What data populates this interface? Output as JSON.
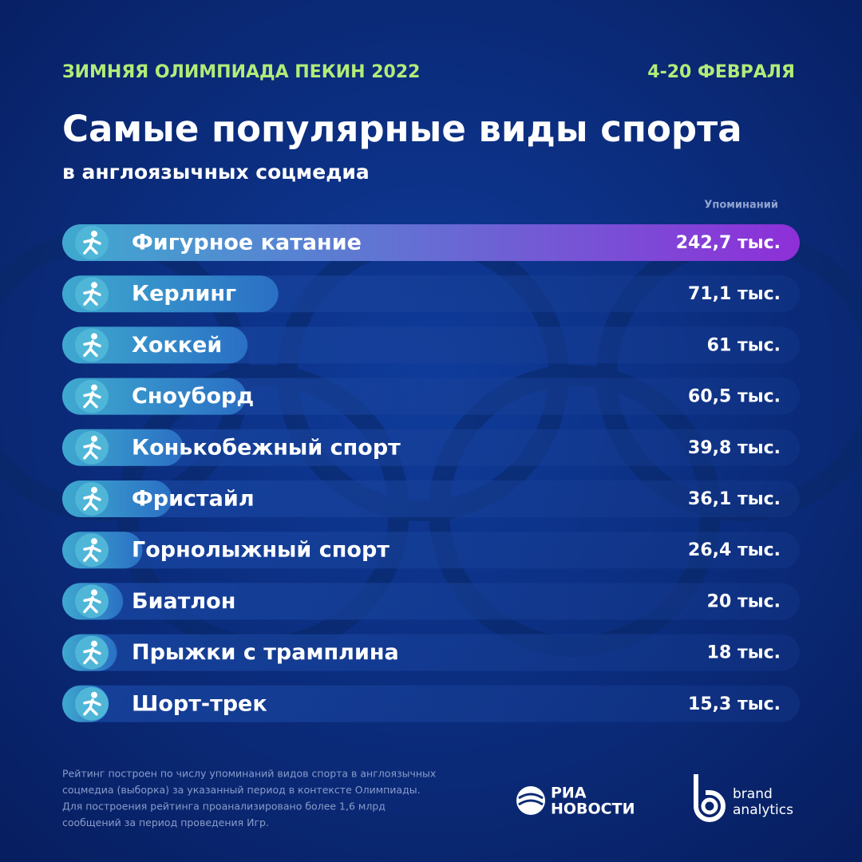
{
  "header": {
    "event": "ЗИМНЯЯ ОЛИМПИАДА ПЕКИН 2022",
    "dates": "4-20 ФЕВРАЛЯ"
  },
  "chart_data": {
    "type": "hbar",
    "title": "Самые популярные виды спорта",
    "subtitle": "в англоязычных соцмедиа",
    "value_label": "Упоминаний",
    "categories": [
      "Фигурное катание",
      "Керлинг",
      "Хоккей",
      "Сноуборд",
      "Конькобежный спорт",
      "Фристайл",
      "Горнолыжный спорт",
      "Биатлон",
      "Прыжки с трамплина",
      "Шорт-трек"
    ],
    "values": [
      242.7,
      71.1,
      61,
      60.5,
      39.8,
      36.1,
      26.4,
      20,
      18,
      15.3
    ],
    "value_labels": [
      "242,7 тыс.",
      "71,1 тыс.",
      "61 тыс.",
      "60,5 тыс.",
      "39,8 тыс.",
      "36,1 тыс.",
      "26,4 тыс.",
      "20 тыс.",
      "18 тыс.",
      "15,3 тыс."
    ],
    "color": "#3fa9cf",
    "highlight_color": "#8e2fd8"
  },
  "footnote": [
    "Рейтинг построен по числу упоминаний видов спорта в англоязычных",
    "соцмедиа (выборка) за указанный период в контексте Олимпиады.",
    "Для построения рейтинга проанализировано более 1,6 млрд",
    "сообщений за период проведения Игр."
  ],
  "logos": {
    "ria": [
      "РИА",
      "НОВОСТИ"
    ],
    "brand": [
      "brand",
      "analytics"
    ]
  }
}
